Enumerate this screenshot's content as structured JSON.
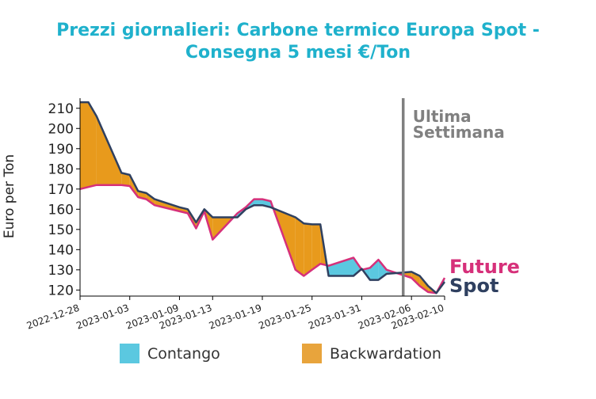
{
  "chart_data": {
    "type": "area",
    "title_line1": "Prezzi giornalieri: Carbone termico Europa Spot -",
    "title_line2": "Consegna 5 mesi €/Ton",
    "ylabel": "Euro per Ton",
    "xlabel": "",
    "ylim": [
      117,
      215
    ],
    "yticks": [
      120,
      130,
      140,
      150,
      160,
      170,
      180,
      190,
      200,
      210
    ],
    "x_range": [
      "2022-12-28",
      "2023-02-10"
    ],
    "xticks": [
      "2022-12-28",
      "2023-01-03",
      "2023-01-09",
      "2023-01-13",
      "2023-01-19",
      "2023-01-25",
      "2023-01-31",
      "2023-02-06",
      "2023-02-10"
    ],
    "annotation": {
      "line1": "Ultima",
      "line2": "Settimana",
      "date": "2023-02-05"
    },
    "colors": {
      "future": "#d6307a",
      "spot": "#2f4060",
      "contango": "#5bc8e0",
      "backwardation": "#e89a1c",
      "annotation_line": "#808080",
      "title": "#1fb1cc"
    },
    "series": [
      {
        "name": "Spot",
        "dates": [
          "2022-12-28",
          "2022-12-29",
          "2022-12-30",
          "2023-01-02",
          "2023-01-03",
          "2023-01-04",
          "2023-01-05",
          "2023-01-06",
          "2023-01-09",
          "2023-01-10",
          "2023-01-11",
          "2023-01-12",
          "2023-01-13",
          "2023-01-16",
          "2023-01-17",
          "2023-01-18",
          "2023-01-19",
          "2023-01-20",
          "2023-01-23",
          "2023-01-24",
          "2023-01-25",
          "2023-01-26",
          "2023-01-27",
          "2023-01-30",
          "2023-01-31",
          "2023-02-01",
          "2023-02-02",
          "2023-02-03",
          "2023-02-06",
          "2023-02-07",
          "2023-02-08",
          "2023-02-09",
          "2023-02-10"
        ],
        "values": [
          213,
          213,
          206,
          178,
          177,
          169,
          168,
          165,
          161,
          160,
          153.5,
          160,
          156,
          156,
          160,
          162,
          162,
          161,
          156,
          153,
          152.5,
          152.5,
          127,
          127,
          130.5,
          125,
          125,
          128,
          129,
          127,
          122,
          118.5,
          124
        ]
      },
      {
        "name": "Future",
        "dates": [
          "2022-12-28",
          "2022-12-29",
          "2022-12-30",
          "2023-01-02",
          "2023-01-03",
          "2023-01-04",
          "2023-01-05",
          "2023-01-06",
          "2023-01-09",
          "2023-01-10",
          "2023-01-11",
          "2023-01-12",
          "2023-01-13",
          "2023-01-16",
          "2023-01-17",
          "2023-01-18",
          "2023-01-19",
          "2023-01-20",
          "2023-01-23",
          "2023-01-24",
          "2023-01-25",
          "2023-01-26",
          "2023-01-27",
          "2023-01-30",
          "2023-01-31",
          "2023-02-01",
          "2023-02-02",
          "2023-02-03",
          "2023-02-06",
          "2023-02-07",
          "2023-02-08",
          "2023-02-09",
          "2023-02-10"
        ],
        "values": [
          170,
          171,
          172,
          172,
          171.5,
          166,
          165,
          162,
          159,
          158,
          150.5,
          159,
          145,
          158,
          161,
          165,
          165,
          164,
          130,
          127,
          130,
          133,
          132,
          136,
          130,
          131,
          135,
          130,
          126,
          122,
          119,
          118.5,
          126
        ]
      }
    ],
    "legend": [
      {
        "label": "Contango",
        "color": "#5bc8e0"
      },
      {
        "label": "Backwardation",
        "color": "#e8a43c"
      }
    ]
  }
}
